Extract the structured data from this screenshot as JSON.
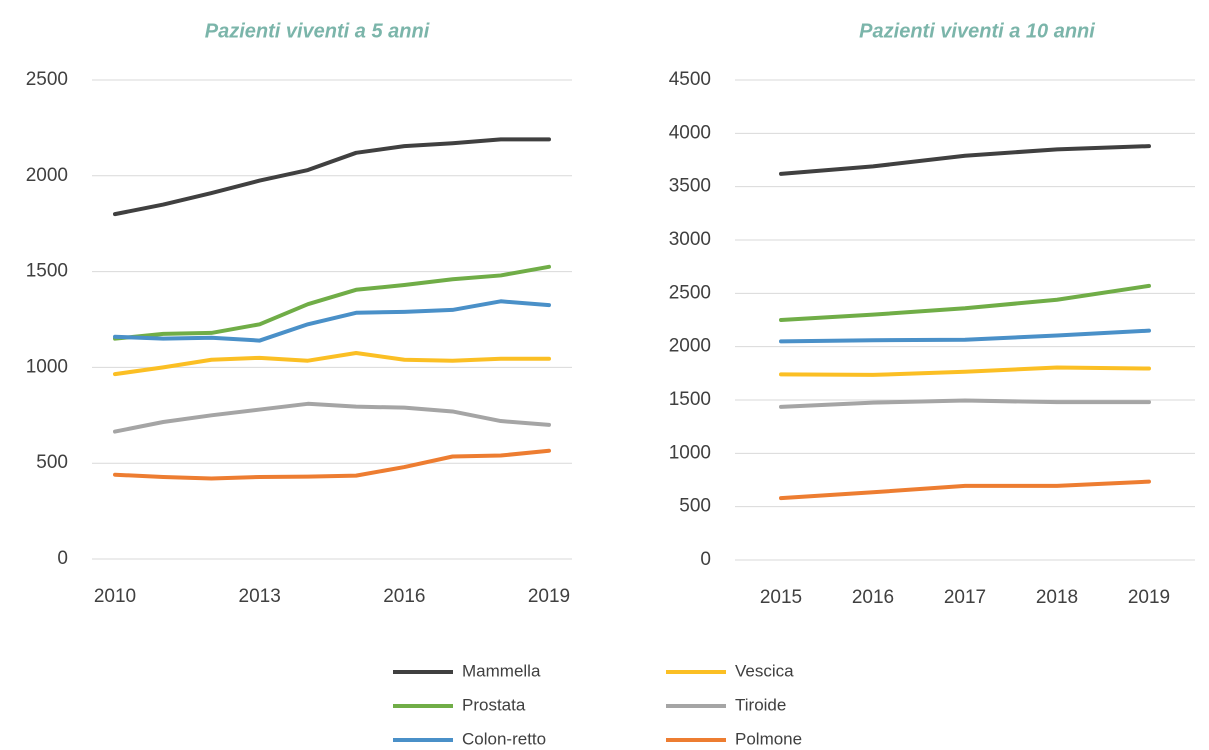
{
  "chart_data": [
    {
      "type": "line",
      "title": "Pazienti viventi a 5 anni",
      "x": [
        2010,
        2011,
        2012,
        2013,
        2014,
        2015,
        2016,
        2017,
        2018,
        2019
      ],
      "xlim": [
        2010,
        2019
      ],
      "xticks": [
        2010,
        2013,
        2016,
        2019
      ],
      "ylim": [
        0,
        2500
      ],
      "yticks": [
        0,
        500,
        1000,
        1500,
        2000,
        2500
      ],
      "grid": true,
      "series": [
        {
          "name": "Mammella",
          "color": "#404040",
          "values": [
            1800,
            1850,
            1910,
            1975,
            2030,
            2120,
            2155,
            2170,
            2190,
            2190
          ]
        },
        {
          "name": "Prostata",
          "color": "#70ad47",
          "values": [
            1150,
            1175,
            1180,
            1225,
            1330,
            1405,
            1430,
            1460,
            1480,
            1525
          ]
        },
        {
          "name": "Colon-retto",
          "color": "#4a90c8",
          "values": [
            1160,
            1150,
            1155,
            1140,
            1225,
            1285,
            1290,
            1300,
            1345,
            1325
          ]
        },
        {
          "name": "Vescica",
          "color": "#fbbf24",
          "values": [
            965,
            1000,
            1040,
            1050,
            1035,
            1075,
            1040,
            1035,
            1045,
            1045
          ]
        },
        {
          "name": "Tiroide",
          "color": "#a5a5a5",
          "values": [
            665,
            715,
            750,
            780,
            810,
            795,
            790,
            770,
            720,
            700
          ]
        },
        {
          "name": "Polmone",
          "color": "#ed7d31",
          "values": [
            440,
            428,
            420,
            428,
            430,
            435,
            480,
            535,
            540,
            565
          ]
        }
      ]
    },
    {
      "type": "line",
      "title": "Pazienti viventi a 10 anni",
      "categories": [
        "2015",
        "2016",
        "2017",
        "2018",
        "2019"
      ],
      "ylim": [
        0,
        4500
      ],
      "yticks": [
        0,
        500,
        1000,
        1500,
        2000,
        2500,
        3000,
        3500,
        4000,
        4500
      ],
      "grid": true,
      "series": [
        {
          "name": "Mammella",
          "color": "#404040",
          "values": [
            3620,
            3690,
            3790,
            3850,
            3880
          ]
        },
        {
          "name": "Prostata",
          "color": "#70ad47",
          "values": [
            2250,
            2300,
            2360,
            2440,
            2570
          ]
        },
        {
          "name": "Colon-retto",
          "color": "#4a90c8",
          "values": [
            2050,
            2060,
            2065,
            2105,
            2150
          ]
        },
        {
          "name": "Vescica",
          "color": "#fbbf24",
          "values": [
            1740,
            1735,
            1765,
            1805,
            1795
          ]
        },
        {
          "name": "Tiroide",
          "color": "#a5a5a5",
          "values": [
            1435,
            1475,
            1495,
            1480,
            1480
          ]
        },
        {
          "name": "Polmone",
          "color": "#ed7d31",
          "values": [
            580,
            635,
            695,
            695,
            735
          ]
        }
      ]
    }
  ]
}
